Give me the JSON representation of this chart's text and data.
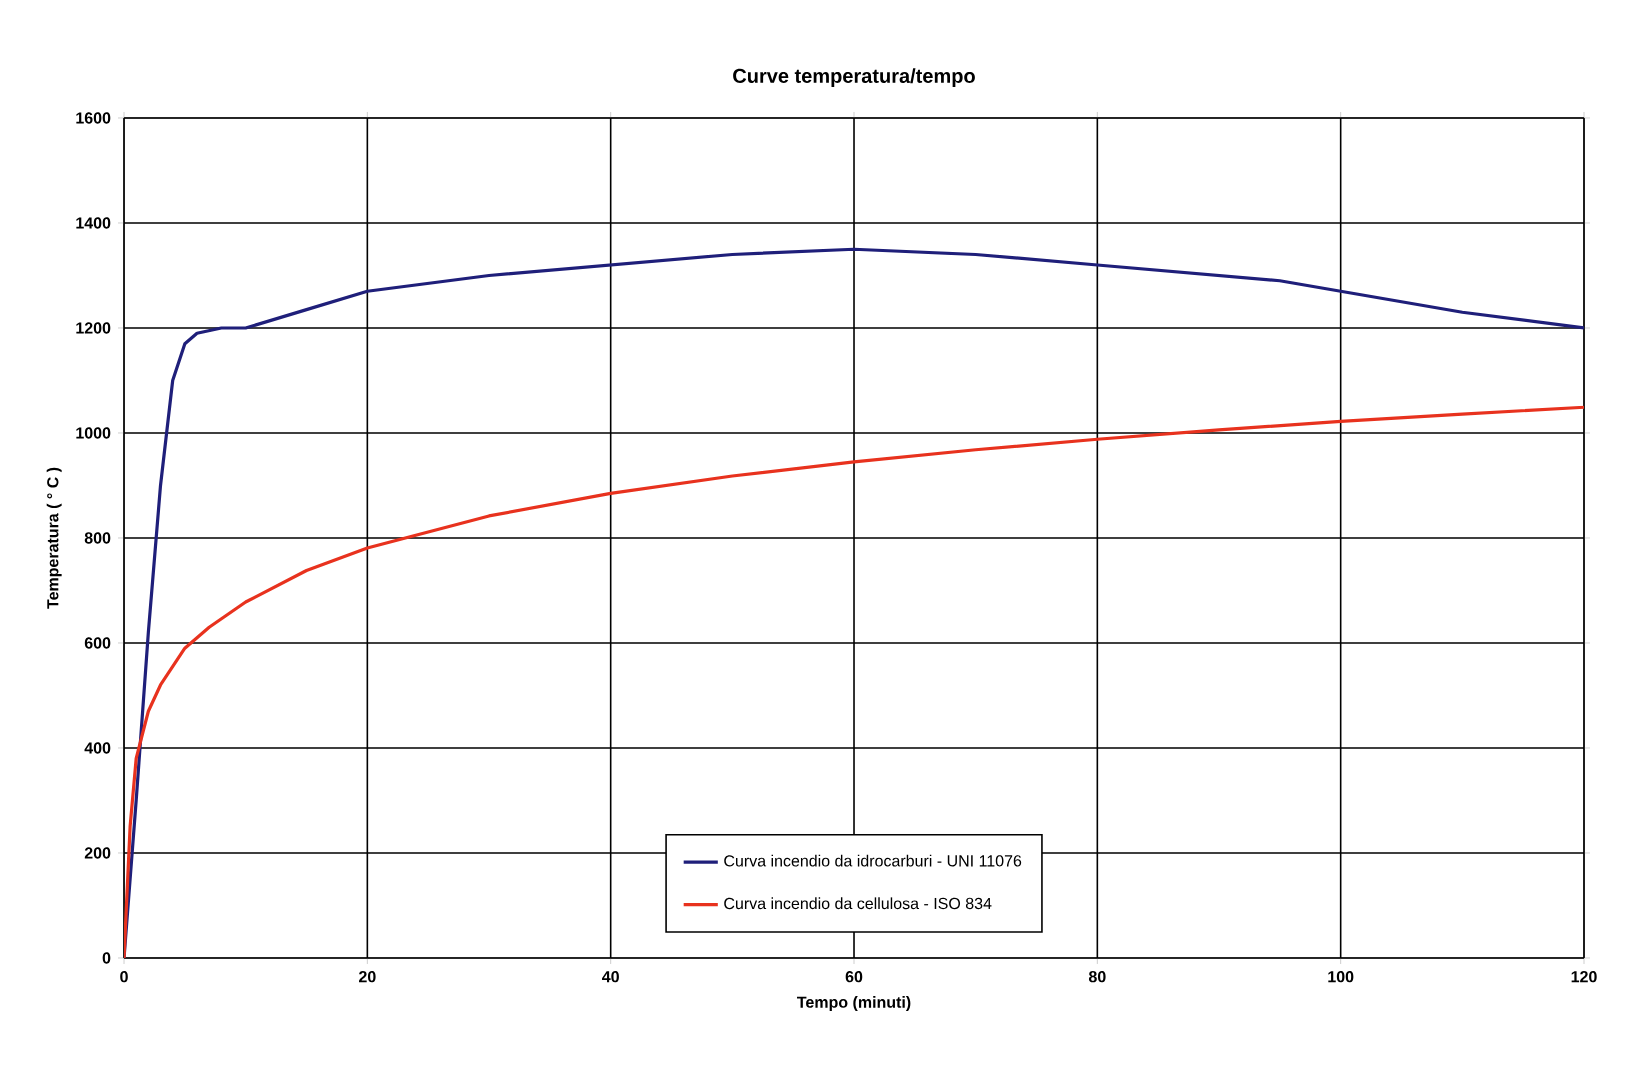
{
  "chart_data": {
    "type": "line",
    "title": "Curve  temperatura/tempo",
    "xlabel": "Tempo (minuti)",
    "ylabel": "Temperatura ( ° C )",
    "xlim": [
      0,
      120
    ],
    "xticks": [
      0,
      20,
      40,
      60,
      80,
      100,
      120
    ],
    "ylim": [
      0,
      1600
    ],
    "yticks": [
      0,
      200,
      400,
      600,
      800,
      1000,
      1200,
      1400,
      1600
    ],
    "grid": true,
    "legend": "bottom",
    "marker": "none",
    "line_style": "solid",
    "series": [
      {
        "name": "Curva incendio da idrocarburi - UNI 11076",
        "color": "#1f1f7a",
        "x": [
          0,
          1,
          2,
          3,
          4,
          5,
          6,
          8,
          10,
          15,
          20,
          30,
          40,
          50,
          60,
          70,
          80,
          95,
          100,
          110,
          120
        ],
        "values": [
          0,
          300,
          620,
          900,
          1100,
          1170,
          1190,
          1200,
          1200,
          1235,
          1270,
          1300,
          1320,
          1340,
          1350,
          1340,
          1320,
          1290,
          1270,
          1230,
          1200
        ]
      },
      {
        "name": "Curva incendio da cellulosa - ISO 834",
        "color": "#e8321e",
        "x": [
          0,
          0.5,
          1,
          2,
          3,
          5,
          7,
          10,
          15,
          20,
          30,
          40,
          50,
          60,
          70,
          80,
          90,
          100,
          110,
          120
        ],
        "values": [
          0,
          250,
          380,
          470,
          520,
          590,
          630,
          678,
          738,
          781,
          842,
          885,
          918,
          945,
          968,
          988,
          1006,
          1022,
          1036,
          1049
        ]
      }
    ]
  }
}
